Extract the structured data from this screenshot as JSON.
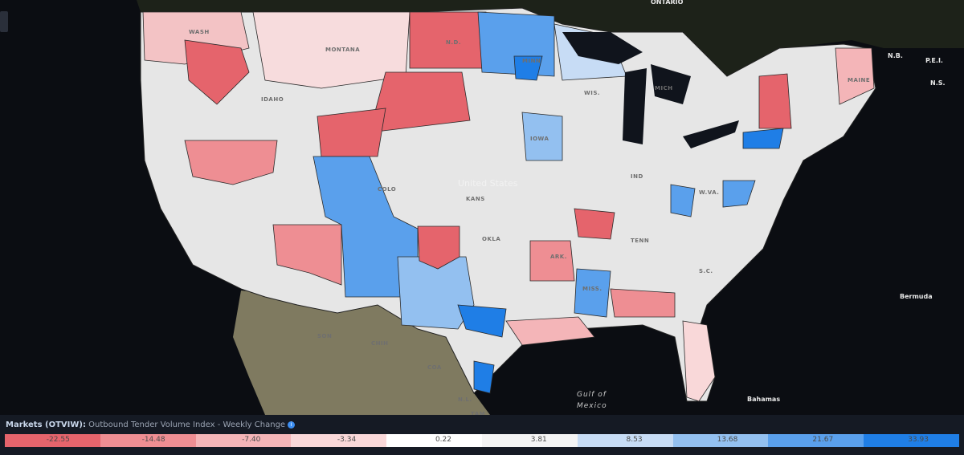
{
  "map": {
    "labels": [
      {
        "text": "ONTARIO"
      },
      {
        "text": "N.B."
      },
      {
        "text": "P.E.I."
      },
      {
        "text": "N.S."
      },
      {
        "text": "MAINE"
      },
      {
        "text": "WASH"
      },
      {
        "text": "MONTANA"
      },
      {
        "text": "IDAHO"
      },
      {
        "text": "N.D."
      },
      {
        "text": "MINN"
      },
      {
        "text": "WIS."
      },
      {
        "text": "MICH"
      },
      {
        "text": "IOWA"
      },
      {
        "text": "COLO"
      },
      {
        "text": "KANS"
      },
      {
        "text": "United States"
      },
      {
        "text": "OKLA"
      },
      {
        "text": "ARK."
      },
      {
        "text": "MISS."
      },
      {
        "text": "TENN"
      },
      {
        "text": "IND"
      },
      {
        "text": "W.VA."
      },
      {
        "text": "S.C."
      },
      {
        "text": "SON"
      },
      {
        "text": "CHIH"
      },
      {
        "text": "COA"
      },
      {
        "text": "N.L."
      },
      {
        "text": "TAM"
      },
      {
        "text": "Bermuda"
      },
      {
        "text": "Gulf of"
      },
      {
        "text": "Mexico"
      },
      {
        "text": "Bahamas"
      }
    ]
  },
  "legend": {
    "title": "Markets (OTVIW):",
    "subtitle": "Outbound Tender Volume Index - Weekly Change",
    "items": [
      {
        "label": "-22.55",
        "color": "#e5646c"
      },
      {
        "label": "-14.48",
        "color": "#ee8e93"
      },
      {
        "label": "-7.40",
        "color": "#f4b5b8"
      },
      {
        "label": "-3.34",
        "color": "#f9d8d9"
      },
      {
        "label": "0.22",
        "color": "#ffffff"
      },
      {
        "label": "3.81",
        "color": "#f4f4f4"
      },
      {
        "label": "8.53",
        "color": "#c7dcf5"
      },
      {
        "label": "13.68",
        "color": "#93c0f0"
      },
      {
        "label": "21.67",
        "color": "#5aa0ec"
      },
      {
        "label": "33.93",
        "color": "#1f7ee6"
      }
    ]
  }
}
